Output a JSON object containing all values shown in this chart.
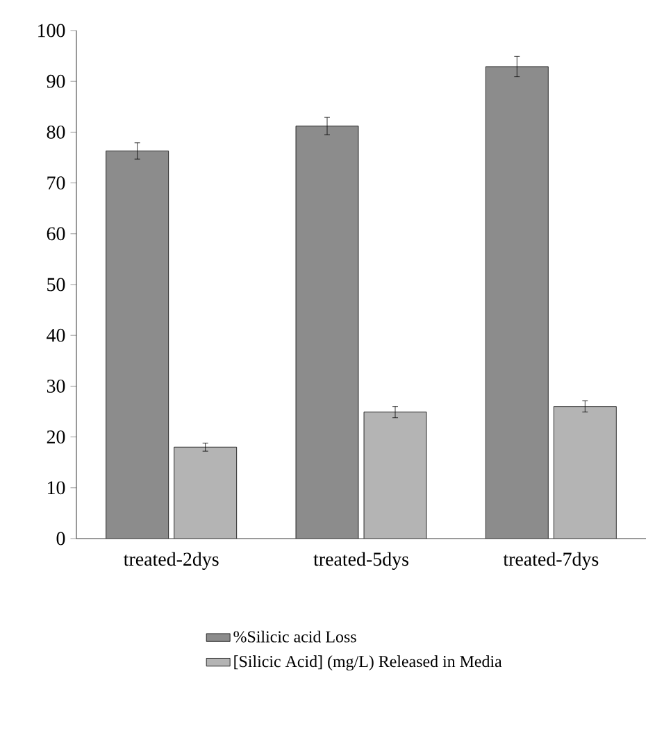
{
  "chart_data": {
    "type": "bar",
    "categories": [
      "treated-2dys",
      "treated-5dys",
      "treated-7dys"
    ],
    "series": [
      {
        "name": "%Silicic acid Loss",
        "color": "#8c8c8c",
        "values": [
          76.3,
          81.2,
          92.9
        ],
        "errors": [
          1.6,
          1.7,
          2.0
        ]
      },
      {
        "name": "[Silicic Acid] (mg/L) Released in Media",
        "color": "#b4b4b4",
        "values": [
          18.0,
          24.9,
          26.0
        ],
        "errors": [
          0.8,
          1.1,
          1.1
        ]
      }
    ],
    "ylim": [
      0,
      100
    ],
    "yticks": [
      0,
      10,
      20,
      30,
      40,
      50,
      60,
      70,
      80,
      90,
      100
    ],
    "legend": "bottom",
    "grid": false
  }
}
